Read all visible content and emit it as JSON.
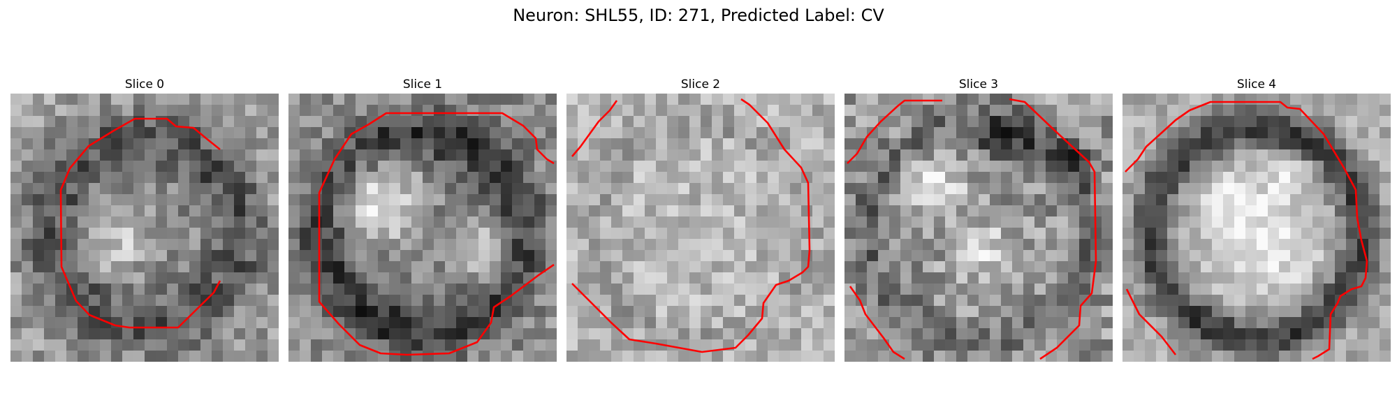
{
  "figure": {
    "title": "Neuron: SHL55, ID: 271, Predicted Label: CV",
    "contour_color": "#ff0000"
  },
  "panels": [
    {
      "title": "Slice 0"
    },
    {
      "title": "Slice 1"
    },
    {
      "title": "Slice 2"
    },
    {
      "title": "Slice 3"
    },
    {
      "title": "Slice 4"
    }
  ]
}
